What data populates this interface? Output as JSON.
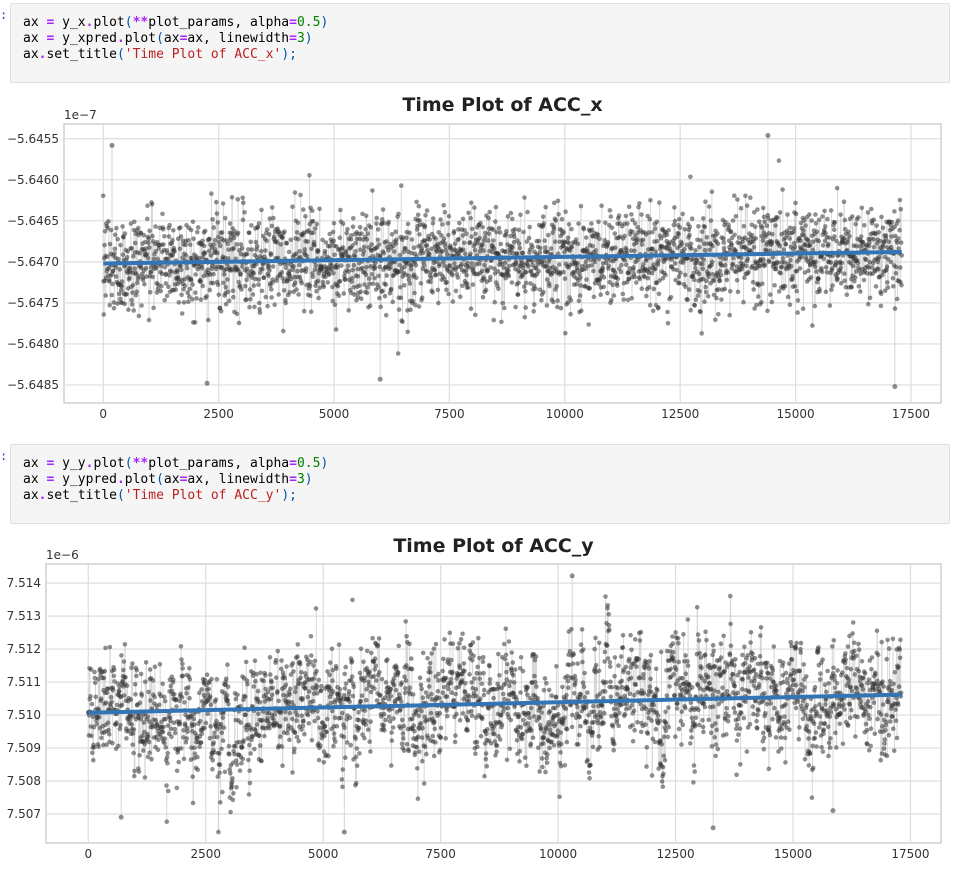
{
  "cells": [
    {
      "prompt": ":",
      "code_lines": [
        [
          {
            "t": "ax ",
            "c": ""
          },
          {
            "t": "=",
            "c": "kw-op"
          },
          {
            "t": " y_x",
            "c": ""
          },
          {
            "t": ".",
            "c": "kw-op"
          },
          {
            "t": "plot",
            "c": ""
          },
          {
            "t": "(",
            "c": "paren"
          },
          {
            "t": "**",
            "c": "kw-op"
          },
          {
            "t": "plot_params, alpha",
            "c": ""
          },
          {
            "t": "=",
            "c": "kw-op"
          },
          {
            "t": "0.5",
            "c": "num"
          },
          {
            "t": ")",
            "c": "paren"
          }
        ],
        [
          {
            "t": "ax ",
            "c": ""
          },
          {
            "t": "=",
            "c": "kw-op"
          },
          {
            "t": " y_xpred",
            "c": ""
          },
          {
            "t": ".",
            "c": "kw-op"
          },
          {
            "t": "plot",
            "c": ""
          },
          {
            "t": "(",
            "c": "paren"
          },
          {
            "t": "ax",
            "c": ""
          },
          {
            "t": "=",
            "c": "kw-op"
          },
          {
            "t": "ax, linewidth",
            "c": ""
          },
          {
            "t": "=",
            "c": "kw-op"
          },
          {
            "t": "3",
            "c": "num"
          },
          {
            "t": ")",
            "c": "paren"
          }
        ],
        [
          {
            "t": "ax",
            "c": ""
          },
          {
            "t": ".",
            "c": "kw-op"
          },
          {
            "t": "set_title",
            "c": ""
          },
          {
            "t": "(",
            "c": "paren"
          },
          {
            "t": "'Time Plot of ACC_x'",
            "c": "str"
          },
          {
            "t": ");",
            "c": "paren"
          }
        ]
      ]
    },
    {
      "prompt": ":",
      "code_lines": [
        [
          {
            "t": "ax ",
            "c": ""
          },
          {
            "t": "=",
            "c": "kw-op"
          },
          {
            "t": " y_y",
            "c": ""
          },
          {
            "t": ".",
            "c": "kw-op"
          },
          {
            "t": "plot",
            "c": ""
          },
          {
            "t": "(",
            "c": "paren"
          },
          {
            "t": "**",
            "c": "kw-op"
          },
          {
            "t": "plot_params, alpha",
            "c": ""
          },
          {
            "t": "=",
            "c": "kw-op"
          },
          {
            "t": "0.5",
            "c": "num"
          },
          {
            "t": ")",
            "c": "paren"
          }
        ],
        [
          {
            "t": "ax ",
            "c": ""
          },
          {
            "t": "=",
            "c": "kw-op"
          },
          {
            "t": " y_ypred",
            "c": ""
          },
          {
            "t": ".",
            "c": "kw-op"
          },
          {
            "t": "plot",
            "c": ""
          },
          {
            "t": "(",
            "c": "paren"
          },
          {
            "t": "ax",
            "c": ""
          },
          {
            "t": "=",
            "c": "kw-op"
          },
          {
            "t": "ax, linewidth",
            "c": ""
          },
          {
            "t": "=",
            "c": "kw-op"
          },
          {
            "t": "3",
            "c": "num"
          },
          {
            "t": ")",
            "c": "paren"
          }
        ],
        [
          {
            "t": "ax",
            "c": ""
          },
          {
            "t": ".",
            "c": "kw-op"
          },
          {
            "t": "set_title",
            "c": ""
          },
          {
            "t": "(",
            "c": "paren"
          },
          {
            "t": "'Time Plot of ACC_y'",
            "c": "str"
          },
          {
            "t": ");",
            "c": "paren"
          }
        ]
      ]
    }
  ],
  "colors": {
    "points": "#333333",
    "stem": "#cccccc",
    "regression": "#3274b5",
    "grid": "#dddddd",
    "axes_edge": "#d0d0d0",
    "text": "#333333"
  },
  "chart_data": [
    {
      "type": "line",
      "title": "Time Plot of ACC_x",
      "xlabel": "",
      "ylabel": "",
      "offset_label": "1e−7",
      "x_range": [
        0,
        17300
      ],
      "xlim": [
        -850,
        18150
      ],
      "ylim": [
        -5.64872,
        -5.64532
      ],
      "x_ticks": [
        0,
        2500,
        5000,
        7500,
        10000,
        12500,
        15000,
        17500
      ],
      "x_tick_labels": [
        "0",
        "2500",
        "5000",
        "7500",
        "10000",
        "12500",
        "15000",
        "17500"
      ],
      "y_ticks": [
        -5.6455,
        -5.646,
        -5.6465,
        -5.647,
        -5.6475,
        -5.648,
        -5.6485
      ],
      "y_tick_labels": [
        "−5.6455",
        "−5.6460",
        "−5.6465",
        "−5.6470",
        "−5.6475",
        "−5.6480",
        "−5.6485"
      ],
      "grid": true,
      "series": [
        {
          "name": "y_x (observed, alpha=0.5)",
          "style": "markers+stems",
          "n_points": 17300,
          "center": -5.647,
          "core_spread": 0.00035,
          "max": -5.64545,
          "min": -5.64853,
          "notable_points": [
            [
              190,
              -5.64558
            ],
            [
              2250,
              -5.64848
            ],
            [
              6000,
              -5.64843
            ],
            [
              14400,
              -5.64546
            ],
            [
              17150,
              -5.64852
            ]
          ]
        },
        {
          "name": "y_xpred (linear fit, linewidth=3)",
          "style": "line",
          "x": [
            0,
            17300
          ],
          "values": [
            -5.64702,
            -5.64688
          ]
        }
      ]
    },
    {
      "type": "line",
      "title": "Time Plot of ACC_y",
      "xlabel": "",
      "ylabel": "",
      "offset_label": "1e−6",
      "x_range": [
        0,
        17300
      ],
      "xlim": [
        -900,
        18150
      ],
      "ylim": [
        7.50612,
        7.51458
      ],
      "x_ticks": [
        0,
        2500,
        5000,
        7500,
        10000,
        12500,
        15000,
        17500
      ],
      "x_tick_labels": [
        "0",
        "2500",
        "5000",
        "7500",
        "10000",
        "12500",
        "15000",
        "17500"
      ],
      "y_ticks": [
        7.507,
        7.508,
        7.509,
        7.51,
        7.511,
        7.512,
        7.513,
        7.514
      ],
      "y_tick_labels": [
        "7.507",
        "7.508",
        "7.509",
        "7.510",
        "7.511",
        "7.512",
        "7.513",
        "7.514"
      ],
      "grid": true,
      "series": [
        {
          "name": "y_y (observed, alpha=0.5)",
          "style": "markers+stems",
          "n_points": 17300,
          "center": 7.5103,
          "core_spread": 0.0009,
          "max": 7.51422,
          "min": 7.50645,
          "notable_points": [
            [
              10300,
              7.51422
            ],
            [
              5450,
              7.50645
            ],
            [
              13300,
              7.50658
            ],
            [
              700,
              7.5069
            ],
            [
              15850,
              7.5071
            ]
          ]
        },
        {
          "name": "y_ypred (linear fit, linewidth=3)",
          "style": "line",
          "x": [
            0,
            17300
          ],
          "values": [
            7.51007,
            7.51062
          ]
        }
      ]
    }
  ]
}
